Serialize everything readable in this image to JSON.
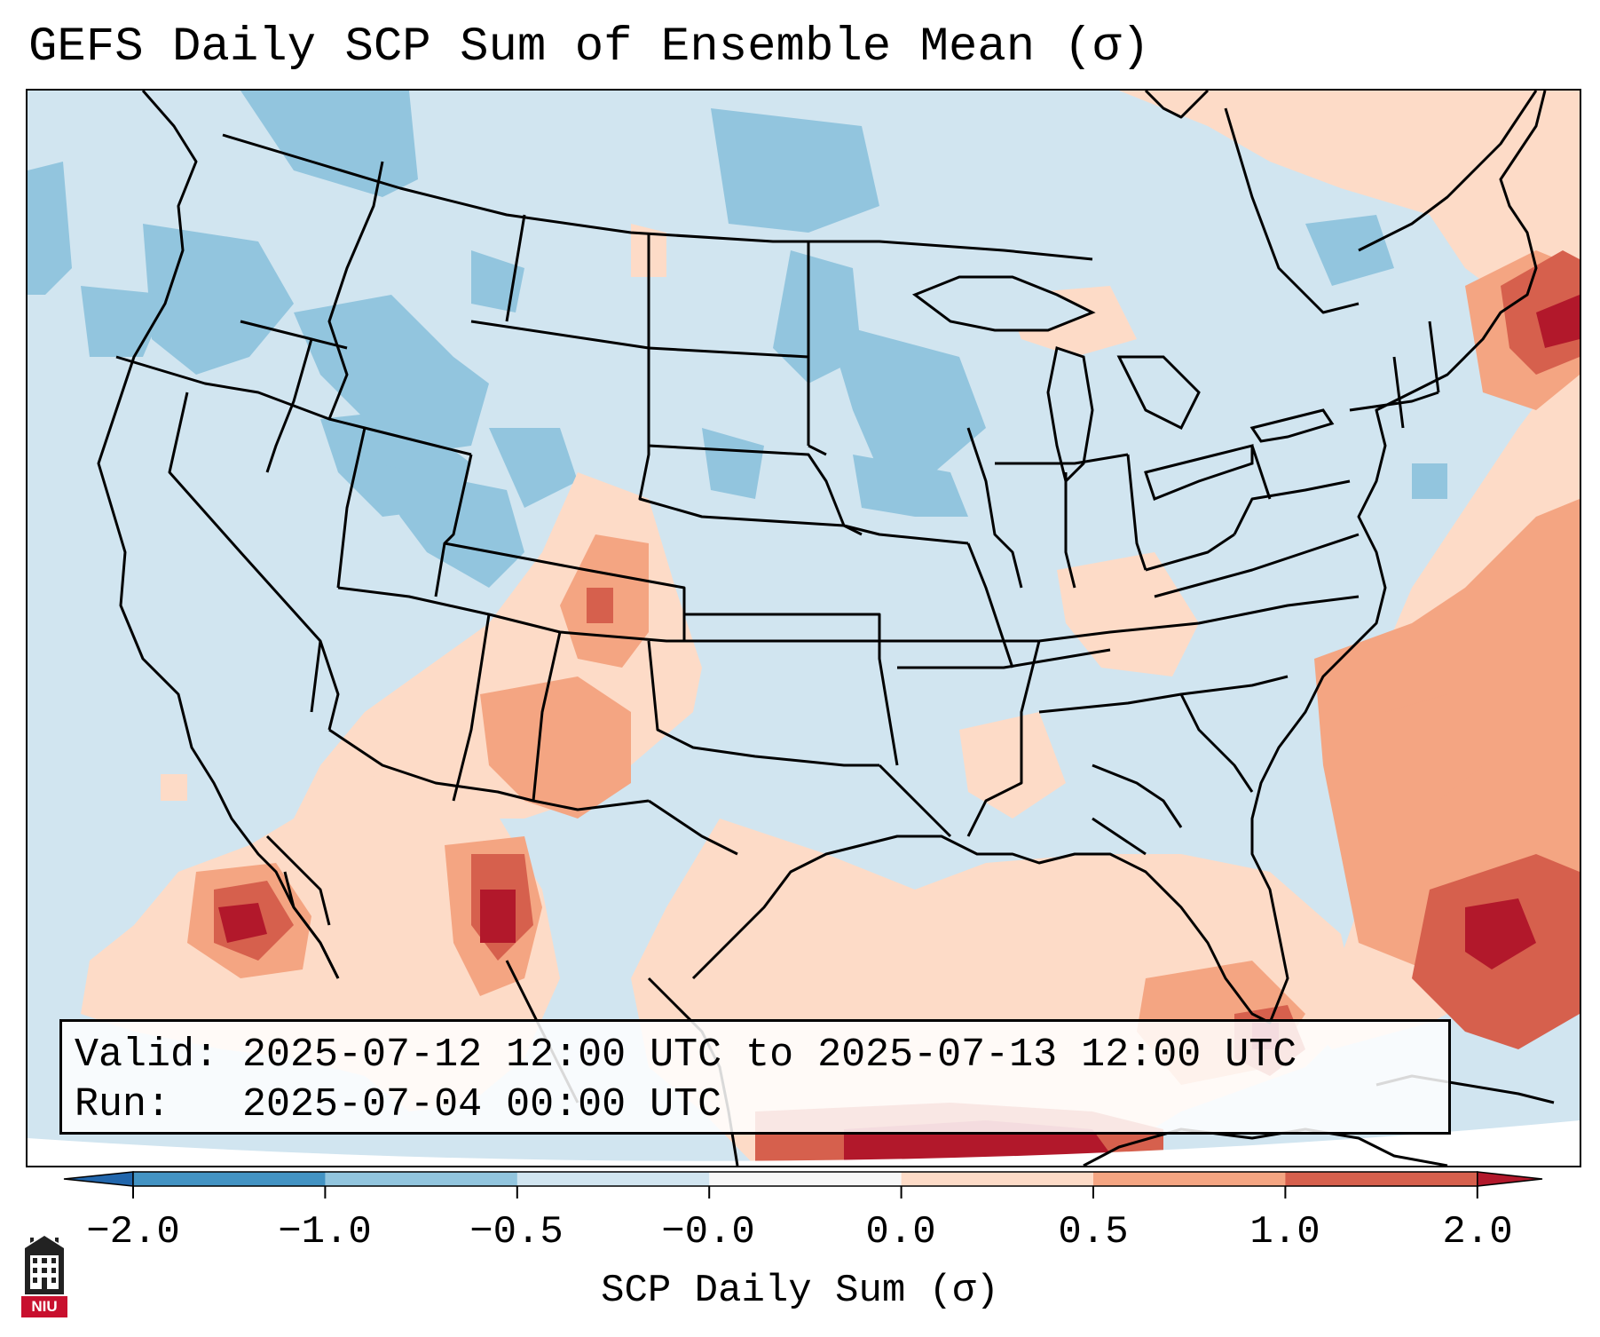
{
  "title": "GEFS Daily SCP Sum of Ensemble Mean (σ)",
  "info": {
    "valid_line": "Valid: 2025-07-12 12:00 UTC to 2025-07-13 12:00 UTC",
    "run_line": "Run:   2025-07-04 00:00 UTC"
  },
  "colorbar": {
    "label": "SCP Daily Sum (σ)",
    "ticks": [
      "−2.0",
      "−1.0",
      "−0.5",
      "−0.0",
      "0.0",
      "0.5",
      "1.0",
      "2.0"
    ],
    "bins": [
      {
        "range": "< -2.0",
        "color": "#2166ac"
      },
      {
        "range": "-2.0 to -1.0",
        "color": "#4393c3"
      },
      {
        "range": "-1.0 to -0.5",
        "color": "#92c5de"
      },
      {
        "range": "-0.5 to -0.0",
        "color": "#d1e5f0"
      },
      {
        "range": "-0.0 to 0.0",
        "color": "#f7f7f7"
      },
      {
        "range": "0.0 to 0.5",
        "color": "#fddbc7"
      },
      {
        "range": "0.5 to 1.0",
        "color": "#f4a582"
      },
      {
        "range": "1.0 to 2.0",
        "color": "#d6604d"
      },
      {
        "range": "> 2.0",
        "color": "#b2182b"
      }
    ]
  },
  "logo": {
    "text": "NIU",
    "icon": "niu-building-icon"
  },
  "colors": {
    "background": "#d1e5f0",
    "negative_light": "#92c5de",
    "positive_light": "#fddbc7",
    "positive_mid": "#f4a582",
    "positive_strong": "#d6604d",
    "positive_max": "#b2182b"
  }
}
